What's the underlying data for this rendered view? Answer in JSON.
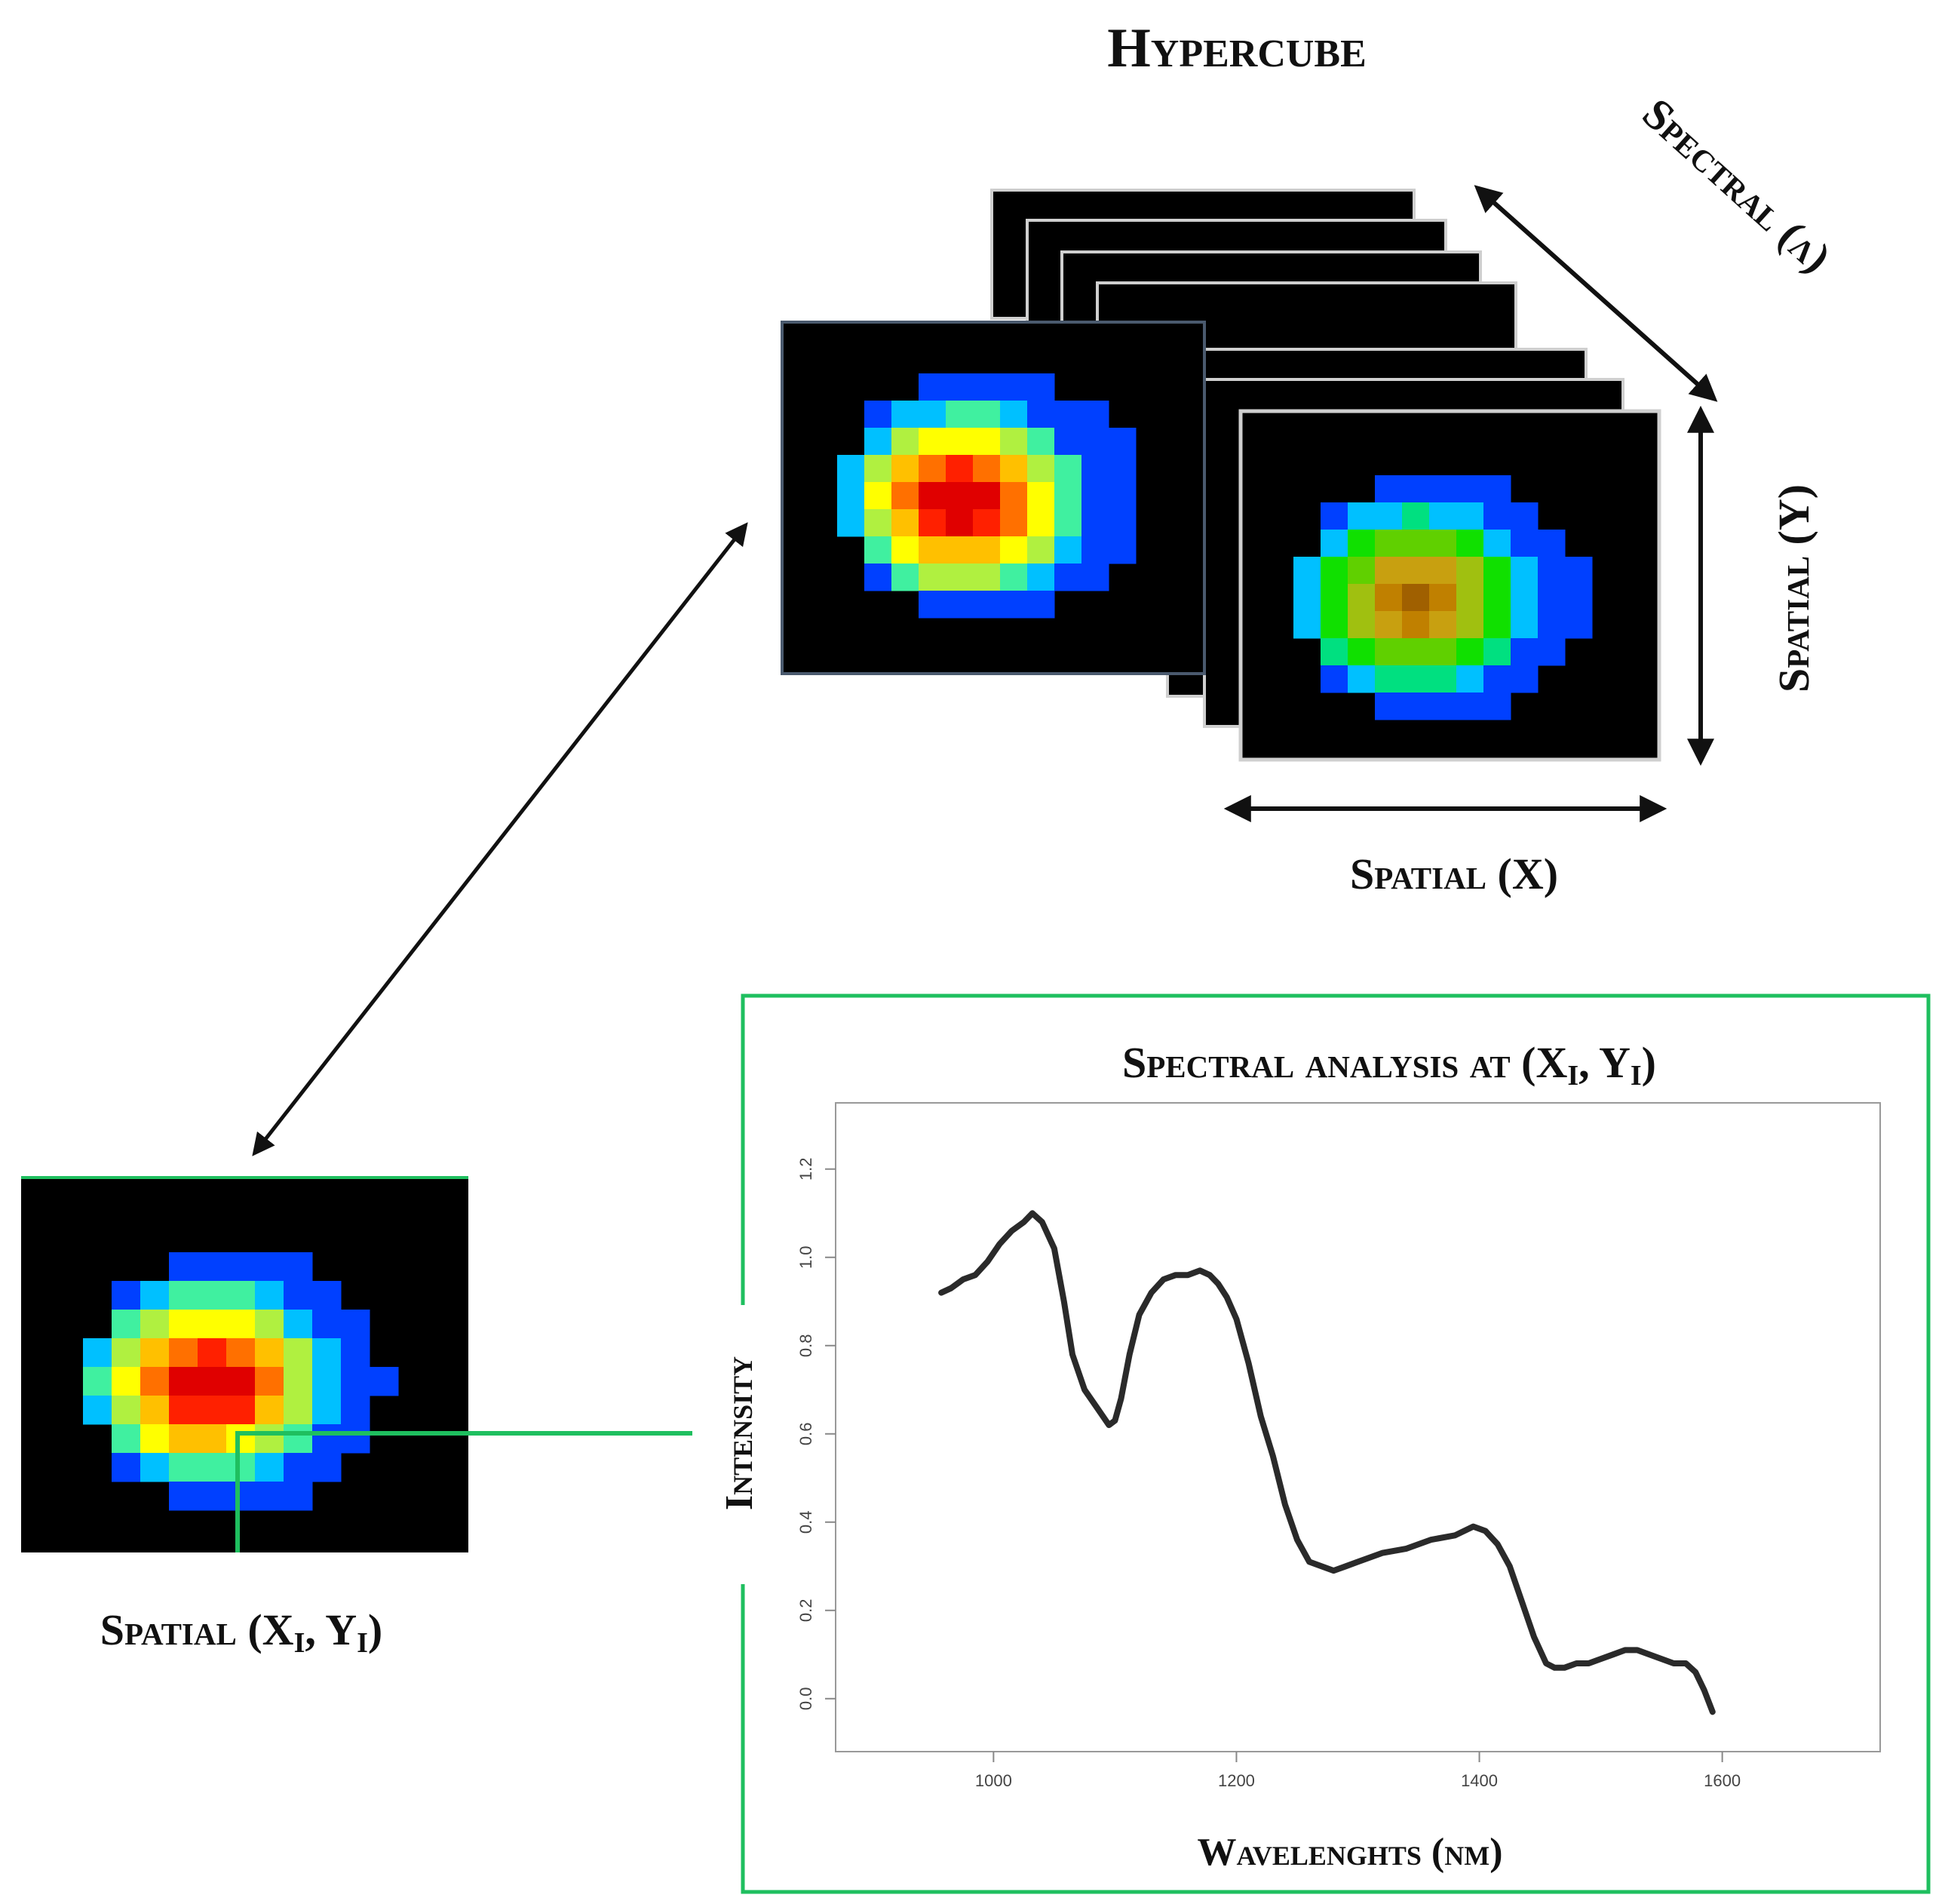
{
  "title": "Hypercube",
  "axes": {
    "spectral_lambda": "Spectral (λ)",
    "spatial_y": "Spatial (Y)",
    "spatial_x": "Spatial (X)"
  },
  "pixel_label": {
    "prefix": "Spatial (X",
    "sub1": "I",
    "mid": ", Y",
    "sub2": "I",
    "suffix": ")"
  },
  "chart_title": {
    "prefix": "Spectral analysis at (X",
    "sub1": "I",
    "mid": ", Y",
    "sub2": "I",
    "suffix": ")"
  },
  "colors": {
    "highlight": "#1fbf5f",
    "curve": "#2a2a2a"
  },
  "chart_data": {
    "type": "line",
    "xlabel": "Wavelenghts (nm)",
    "ylabel": "Intensity",
    "xlim": [
      870,
      1730
    ],
    "ylim": [
      -0.12,
      1.35
    ],
    "xticks": [
      1000,
      1200,
      1400,
      1600
    ],
    "xtick_labels": [
      "1000",
      "1200",
      "1400",
      "1600"
    ],
    "yticks": [
      0,
      0.2,
      0.4,
      0.6,
      0.8,
      1.0,
      1.2
    ],
    "ytick_labels": [
      "0.0",
      "0.2",
      "0.4",
      "0.6",
      "0.8",
      "1.0",
      "1.2"
    ],
    "series": [
      {
        "x": [
          957,
          965,
          975,
          985,
          995,
          1005,
          1015,
          1025,
          1032,
          1040,
          1050,
          1058,
          1065,
          1075,
          1085,
          1095,
          1100,
          1105,
          1112,
          1120,
          1130,
          1140,
          1150,
          1160,
          1170,
          1178,
          1185,
          1192,
          1200,
          1210,
          1220,
          1230,
          1240,
          1250,
          1260,
          1270,
          1280,
          1290,
          1300,
          1320,
          1340,
          1360,
          1380,
          1395,
          1405,
          1415,
          1425,
          1435,
          1445,
          1455,
          1462,
          1470,
          1480,
          1490,
          1500,
          1510,
          1520,
          1530,
          1540,
          1550,
          1560,
          1570,
          1578,
          1585,
          1592
        ],
        "y": [
          0.92,
          0.93,
          0.95,
          0.96,
          0.99,
          1.03,
          1.06,
          1.08,
          1.1,
          1.08,
          1.02,
          0.9,
          0.78,
          0.7,
          0.66,
          0.62,
          0.63,
          0.68,
          0.78,
          0.87,
          0.92,
          0.95,
          0.96,
          0.96,
          0.97,
          0.96,
          0.94,
          0.91,
          0.86,
          0.76,
          0.64,
          0.55,
          0.44,
          0.36,
          0.31,
          0.3,
          0.29,
          0.3,
          0.31,
          0.33,
          0.34,
          0.36,
          0.37,
          0.39,
          0.38,
          0.35,
          0.3,
          0.22,
          0.14,
          0.08,
          0.07,
          0.07,
          0.08,
          0.08,
          0.09,
          0.1,
          0.11,
          0.11,
          0.1,
          0.09,
          0.08,
          0.08,
          0.06,
          0.02,
          -0.03
        ]
      }
    ]
  }
}
